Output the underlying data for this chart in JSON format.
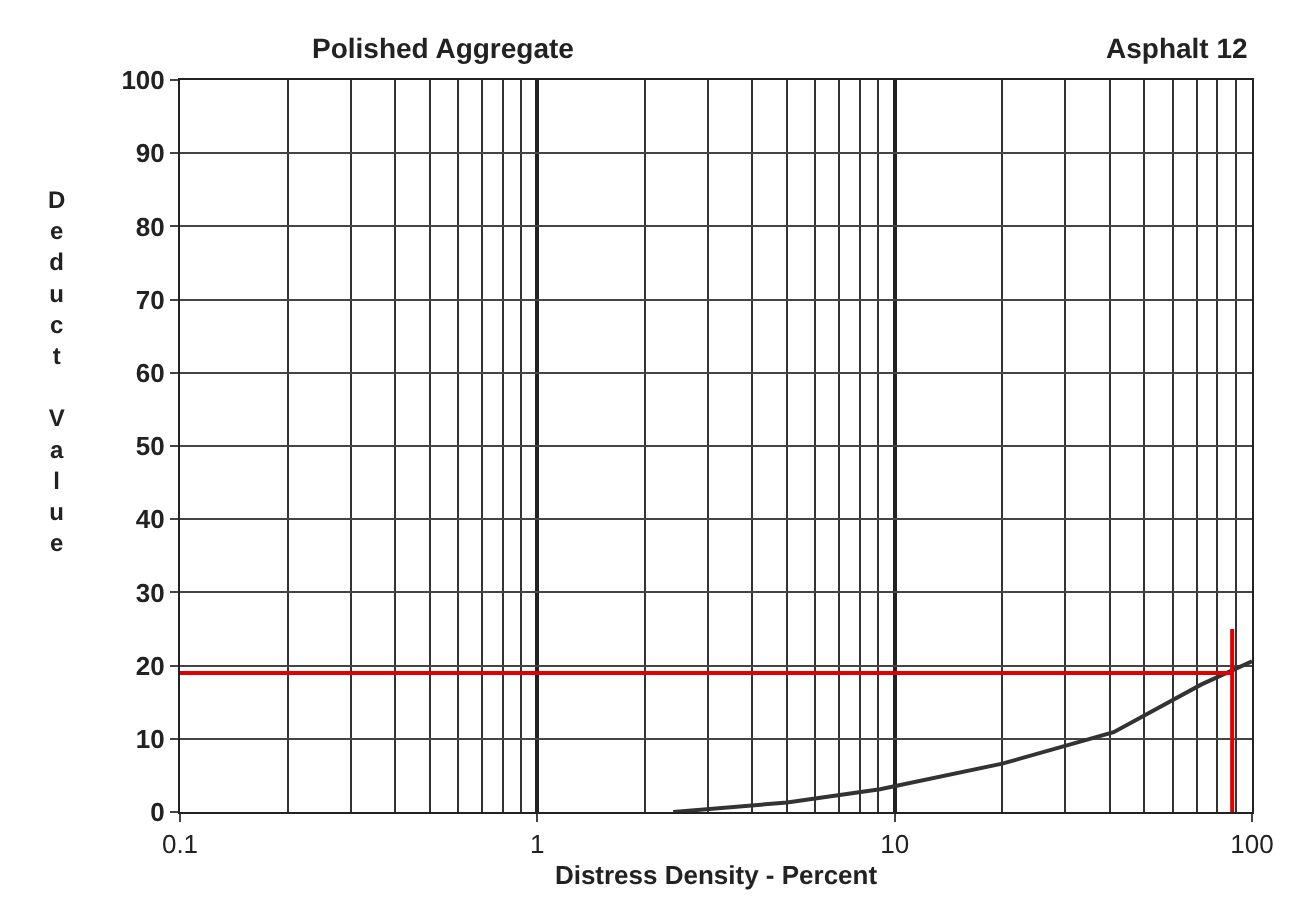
{
  "chart_data": {
    "type": "line",
    "title": "Polished Aggregate",
    "subtitle": "Asphalt 12",
    "xlabel": "Distress Density - Percent",
    "ylabel": "Deduct Value",
    "log": "x",
    "grid": true,
    "xlim": [
      0.1,
      100
    ],
    "xticks": [
      0.1,
      1,
      10,
      100
    ],
    "ylim": [
      0,
      100
    ],
    "yticks": [
      0,
      10,
      20,
      30,
      40,
      50,
      60,
      70,
      80,
      90,
      100
    ],
    "series": [
      {
        "color": "#333333",
        "x": [
          2.4,
          5,
          9.1,
          20,
          41,
          72,
          100
        ],
        "values": [
          0,
          1.3,
          3.1,
          6.6,
          10.9,
          17.4,
          20.6
        ]
      },
      {
        "color": "#e00000",
        "x": [
          0.1,
          88
        ],
        "values": [
          19,
          19
        ]
      },
      {
        "color": "#e00000",
        "x": [
          88,
          88
        ],
        "values": [
          0,
          25
        ]
      }
    ]
  }
}
